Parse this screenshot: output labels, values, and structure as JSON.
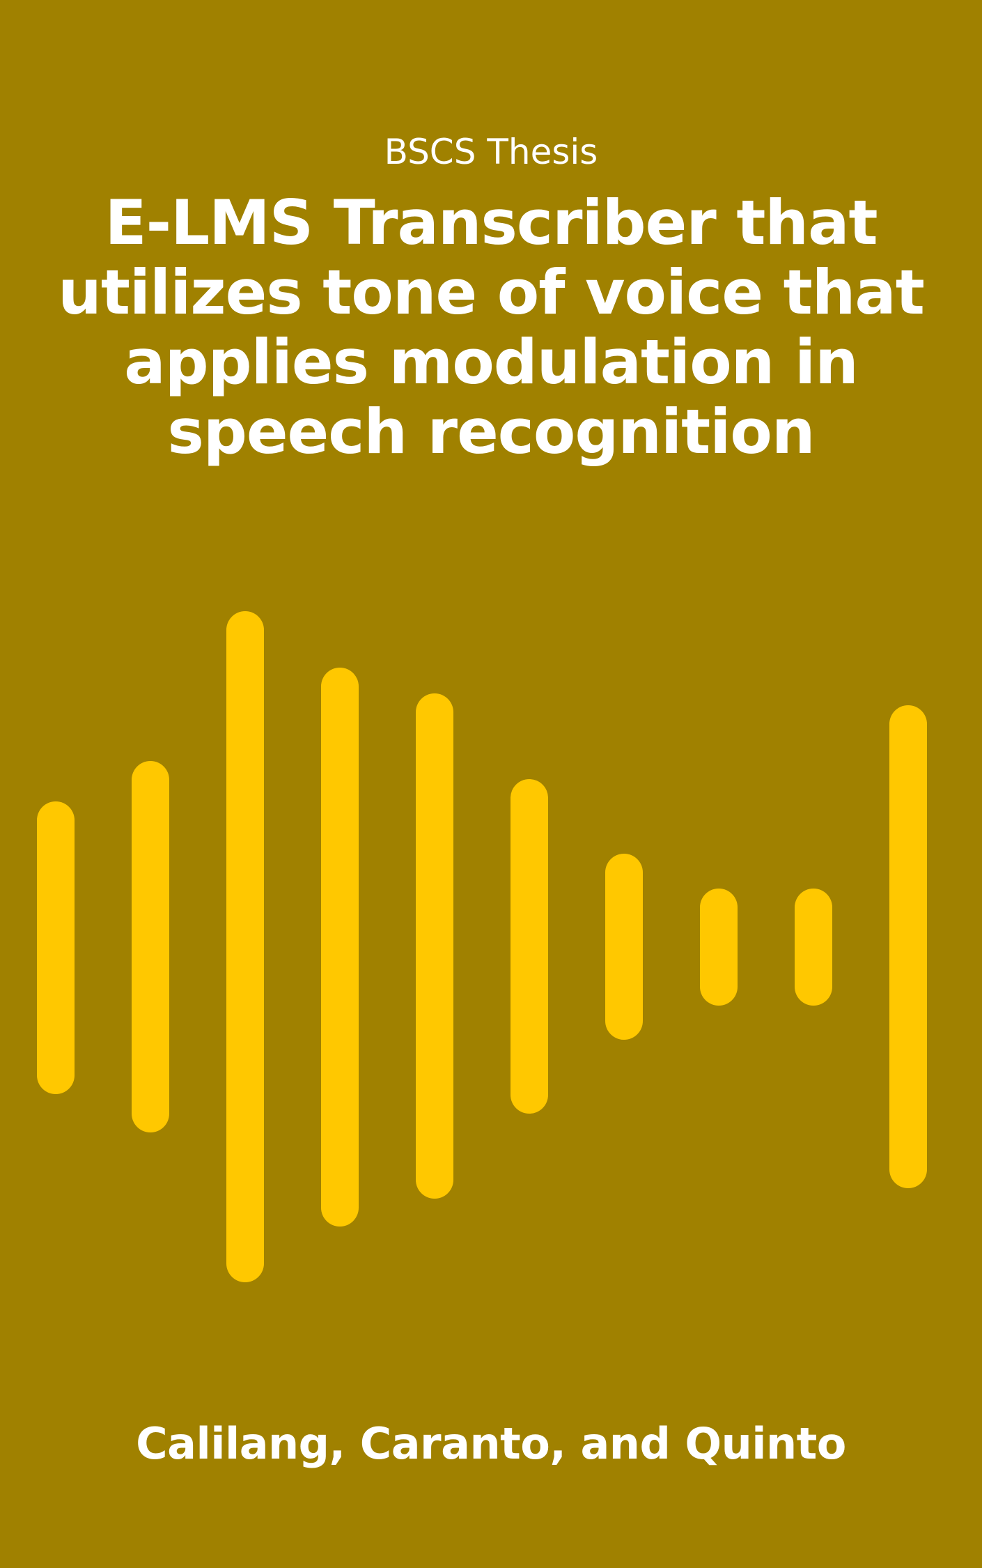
{
  "cover": {
    "subtitle": "BSCS Thesis",
    "title_lines": [
      "E-LMS Transcriber that",
      "utilizes tone of voice that",
      "applies modulation in",
      "speech recognition"
    ],
    "authors": "Calilang, Caranto, and Quinto"
  },
  "colors": {
    "background": "#a08100",
    "bar": "#ffc800",
    "text": "#ffffff"
  },
  "waveform": {
    "icon": "audio-waveform-icon",
    "bars": [
      {
        "top": 1150,
        "bottom": 1570
      },
      {
        "top": 1092,
        "bottom": 1625
      },
      {
        "top": 877,
        "bottom": 1840
      },
      {
        "top": 958,
        "bottom": 1760
      },
      {
        "top": 995,
        "bottom": 1720
      },
      {
        "top": 1118,
        "bottom": 1598
      },
      {
        "top": 1225,
        "bottom": 1492
      },
      {
        "top": 1275,
        "bottom": 1443
      },
      {
        "top": 1275,
        "bottom": 1443
      },
      {
        "top": 1012,
        "bottom": 1705
      }
    ]
  }
}
